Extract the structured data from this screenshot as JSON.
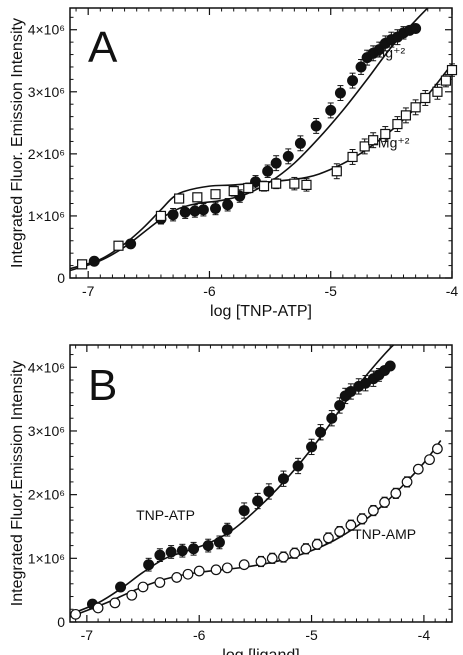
{
  "chart_data": [
    {
      "type": "scatter",
      "panel_label": "A",
      "xlabel": "log [TNP-ATP]",
      "ylabel": "Integrated Fluor. Emission Intensity",
      "xlim": [
        -7.15,
        -4.0
      ],
      "ylim": [
        0,
        4.35
      ],
      "y_unit_multiplier": 1000000,
      "x_ticks": [
        {
          "value": -7,
          "label": "-7"
        },
        {
          "value": -6,
          "label": "-6"
        },
        {
          "value": -5,
          "label": "-5"
        },
        {
          "value": -4,
          "label": "-4"
        }
      ],
      "y_ticks": [
        {
          "value": 0,
          "label": "0"
        },
        {
          "value": 1,
          "label": "1×10⁶"
        },
        {
          "value": 2,
          "label": "2×10⁶"
        },
        {
          "value": 3,
          "label": "3×10⁶"
        },
        {
          "value": 4,
          "label": "4×10⁶"
        }
      ],
      "grid": false,
      "series": [
        {
          "name": "+Mg⁺²",
          "marker": "filled-circle",
          "color": "#111111",
          "x": [
            -6.95,
            -6.65,
            -6.4,
            -6.3,
            -6.2,
            -6.12,
            -6.05,
            -5.95,
            -5.85,
            -5.75,
            -5.62,
            -5.52,
            -5.45,
            -5.35,
            -5.25,
            -5.12,
            -5.0,
            -4.92,
            -4.82,
            -4.75,
            -4.7,
            -4.65,
            -4.6,
            -4.55,
            -4.5,
            -4.45,
            -4.4,
            -4.35,
            -4.3
          ],
          "y": [
            0.27,
            0.55,
            0.95,
            1.02,
            1.06,
            1.08,
            1.1,
            1.12,
            1.18,
            1.32,
            1.55,
            1.72,
            1.85,
            1.96,
            2.17,
            2.45,
            2.7,
            2.98,
            3.18,
            3.4,
            3.55,
            3.62,
            3.68,
            3.78,
            3.84,
            3.88,
            3.95,
            3.99,
            4.02
          ],
          "err": [
            0.05,
            0.05,
            0.08,
            0.1,
            0.1,
            0.1,
            0.1,
            0.1,
            0.1,
            0.1,
            0.1,
            0.1,
            0.12,
            0.12,
            0.12,
            0.12,
            0.12,
            0.12,
            0.12,
            0.12,
            0.12,
            0.12,
            0.12,
            0.12,
            0.12,
            0.12,
            0.1,
            0.05,
            0.05
          ],
          "fit_x": [
            -7.15,
            -6.9,
            -6.7,
            -6.5,
            -6.35,
            -6.25,
            -6.1,
            -5.9,
            -5.7,
            -5.5,
            -5.3,
            -5.1,
            -4.9,
            -4.7,
            -4.5,
            -4.3,
            -4.15
          ],
          "fit_y": [
            0.12,
            0.28,
            0.5,
            0.8,
            1.02,
            1.12,
            1.2,
            1.25,
            1.35,
            1.55,
            1.85,
            2.25,
            2.7,
            3.2,
            3.72,
            4.15,
            4.45
          ],
          "label_x": -4.55,
          "label_y": 3.55
        },
        {
          "name": "-Mg⁺²",
          "marker": "open-square",
          "color": "#111111",
          "x": [
            -7.05,
            -6.75,
            -6.4,
            -6.25,
            -6.1,
            -5.95,
            -5.8,
            -5.68,
            -5.55,
            -5.45,
            -5.3,
            -5.2,
            -4.95,
            -4.82,
            -4.72,
            -4.65,
            -4.55,
            -4.45,
            -4.38,
            -4.3,
            -4.22,
            -4.12,
            -4.05,
            -4.0
          ],
          "y": [
            0.22,
            0.52,
            1.0,
            1.28,
            1.3,
            1.35,
            1.4,
            1.45,
            1.48,
            1.52,
            1.52,
            1.5,
            1.72,
            1.95,
            2.12,
            2.22,
            2.32,
            2.48,
            2.62,
            2.75,
            2.9,
            3.0,
            3.18,
            3.35
          ],
          "err": [
            0.05,
            0.05,
            0.05,
            0.05,
            0.05,
            0.05,
            0.08,
            0.08,
            0.08,
            0.08,
            0.1,
            0.1,
            0.12,
            0.12,
            0.12,
            0.12,
            0.12,
            0.12,
            0.12,
            0.12,
            0.12,
            0.12,
            0.1,
            0.1
          ],
          "fit_x": [
            -7.15,
            -6.9,
            -6.7,
            -6.55,
            -6.4,
            -6.3,
            -6.2,
            -6.0,
            -5.8,
            -5.5,
            -5.2,
            -5.0,
            -4.8,
            -4.6,
            -4.4,
            -4.2,
            -4.0
          ],
          "fit_y": [
            0.15,
            0.3,
            0.55,
            0.8,
            1.1,
            1.3,
            1.4,
            1.48,
            1.5,
            1.55,
            1.62,
            1.75,
            1.95,
            2.22,
            2.55,
            2.95,
            3.45
          ],
          "label_x": -4.5,
          "label_y": 2.1
        }
      ]
    },
    {
      "type": "scatter",
      "panel_label": "B",
      "xlabel": "log [ligand]",
      "ylabel": "Integrated Fluor.Emission Intensity",
      "xlim": [
        -7.15,
        -3.75
      ],
      "ylim": [
        0,
        4.35
      ],
      "y_unit_multiplier": 1000000,
      "x_ticks": [
        {
          "value": -7,
          "label": "-7"
        },
        {
          "value": -6,
          "label": "-6"
        },
        {
          "value": -5,
          "label": "-5"
        },
        {
          "value": -4,
          "label": "-4"
        }
      ],
      "y_ticks": [
        {
          "value": 0,
          "label": "0"
        },
        {
          "value": 1,
          "label": "1×10⁶"
        },
        {
          "value": 2,
          "label": "2×10⁶"
        },
        {
          "value": 3,
          "label": "3×10⁶"
        },
        {
          "value": 4,
          "label": "4×10⁶"
        }
      ],
      "grid": false,
      "series": [
        {
          "name": "TNP-ATP",
          "marker": "filled-circle",
          "color": "#111111",
          "x": [
            -6.95,
            -6.7,
            -6.45,
            -6.35,
            -6.25,
            -6.15,
            -6.05,
            -5.92,
            -5.82,
            -5.75,
            -5.6,
            -5.48,
            -5.38,
            -5.25,
            -5.12,
            -5.0,
            -4.92,
            -4.82,
            -4.75,
            -4.7,
            -4.65,
            -4.58,
            -4.52,
            -4.45,
            -4.4,
            -4.35,
            -4.3
          ],
          "y": [
            0.28,
            0.55,
            0.9,
            1.05,
            1.1,
            1.12,
            1.15,
            1.2,
            1.25,
            1.45,
            1.75,
            1.9,
            2.05,
            2.25,
            2.45,
            2.75,
            2.98,
            3.2,
            3.4,
            3.55,
            3.62,
            3.7,
            3.75,
            3.82,
            3.88,
            3.95,
            4.02
          ],
          "err": [
            0.05,
            0.05,
            0.1,
            0.1,
            0.1,
            0.1,
            0.1,
            0.1,
            0.1,
            0.1,
            0.12,
            0.12,
            0.12,
            0.12,
            0.12,
            0.12,
            0.12,
            0.12,
            0.12,
            0.12,
            0.12,
            0.12,
            0.12,
            0.12,
            0.1,
            0.05,
            0.05
          ],
          "fit_x": [
            -7.15,
            -6.9,
            -6.7,
            -6.5,
            -6.3,
            -6.1,
            -5.9,
            -5.7,
            -5.5,
            -5.3,
            -5.1,
            -4.9,
            -4.7,
            -4.5,
            -4.3,
            -4.2
          ],
          "fit_y": [
            0.12,
            0.3,
            0.52,
            0.78,
            1.0,
            1.12,
            1.25,
            1.45,
            1.75,
            2.1,
            2.5,
            2.95,
            3.45,
            3.9,
            4.3,
            4.45
          ],
          "label_x": -6.3,
          "label_y": 1.6
        },
        {
          "name": "TNP-AMP",
          "marker": "open-circle",
          "color": "#111111",
          "x": [
            -7.1,
            -6.9,
            -6.75,
            -6.6,
            -6.5,
            -6.35,
            -6.2,
            -6.1,
            -6.0,
            -5.85,
            -5.75,
            -5.6,
            -5.45,
            -5.35,
            -5.25,
            -5.15,
            -5.05,
            -4.95,
            -4.85,
            -4.75,
            -4.65,
            -4.55,
            -4.45,
            -4.35,
            -4.25,
            -4.15,
            -4.05,
            -3.95,
            -3.88
          ],
          "y": [
            0.12,
            0.22,
            0.3,
            0.42,
            0.55,
            0.62,
            0.7,
            0.75,
            0.8,
            0.82,
            0.85,
            0.9,
            0.95,
            1.0,
            1.02,
            1.08,
            1.15,
            1.22,
            1.32,
            1.42,
            1.52,
            1.62,
            1.75,
            1.88,
            2.02,
            2.2,
            2.4,
            2.55,
            2.72
          ],
          "err": [
            0.03,
            0.03,
            0.03,
            0.04,
            0.04,
            0.05,
            0.05,
            0.05,
            0.06,
            0.06,
            0.06,
            0.06,
            0.08,
            0.08,
            0.08,
            0.08,
            0.08,
            0.08,
            0.08,
            0.08,
            0.08,
            0.08,
            0.08,
            0.08,
            0.08,
            0.08,
            0.06,
            0.05,
            0.05
          ],
          "fit_x": [
            -7.15,
            -7.0,
            -6.8,
            -6.6,
            -6.4,
            -6.2,
            -6.0,
            -5.8,
            -5.6,
            -5.4,
            -5.2,
            -5.0,
            -4.8,
            -4.6,
            -4.4,
            -4.2,
            -4.0,
            -3.85
          ],
          "fit_y": [
            0.08,
            0.18,
            0.32,
            0.48,
            0.62,
            0.72,
            0.78,
            0.82,
            0.86,
            0.92,
            1.0,
            1.12,
            1.28,
            1.5,
            1.78,
            2.12,
            2.5,
            2.85
          ],
          "label_x": -4.35,
          "label_y": 1.3
        }
      ]
    }
  ]
}
